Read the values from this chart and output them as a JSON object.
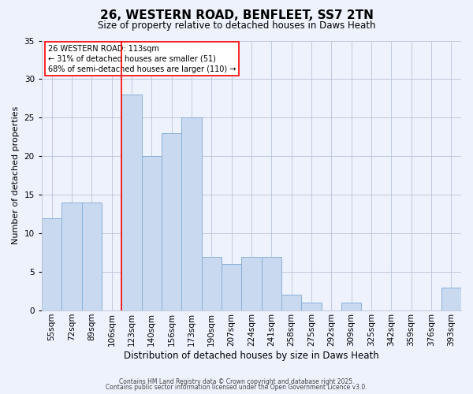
{
  "title": "26, WESTERN ROAD, BENFLEET, SS7 2TN",
  "subtitle": "Size of property relative to detached houses in Daws Heath",
  "xlabel": "Distribution of detached houses by size in Daws Heath",
  "ylabel": "Number of detached properties",
  "categories": [
    "55sqm",
    "72sqm",
    "89sqm",
    "106sqm",
    "123sqm",
    "140sqm",
    "156sqm",
    "173sqm",
    "190sqm",
    "207sqm",
    "224sqm",
    "241sqm",
    "258sqm",
    "275sqm",
    "292sqm",
    "309sqm",
    "325sqm",
    "342sqm",
    "359sqm",
    "376sqm",
    "393sqm"
  ],
  "values": [
    12,
    14,
    14,
    0,
    28,
    20,
    23,
    25,
    7,
    6,
    7,
    7,
    2,
    1,
    0,
    1,
    0,
    0,
    0,
    0,
    3
  ],
  "bar_color": "#c8d9f0",
  "bar_edge_color": "#8ab0d8",
  "red_line_index": 4,
  "annotation_title": "26 WESTERN ROAD: 113sqm",
  "annotation_line1": "← 31% of detached houses are smaller (51)",
  "annotation_line2": "68% of semi-detached houses are larger (110) →",
  "footer1": "Contains HM Land Registry data © Crown copyright and database right 2025.",
  "footer2": "Contains public sector information licensed under the Open Government Licence v3.0.",
  "background_color": "#eef2fc",
  "plot_background": "#eef2fc",
  "ylim": [
    0,
    35
  ],
  "yticks": [
    0,
    5,
    10,
    15,
    20,
    25,
    30,
    35
  ],
  "title_fontsize": 11,
  "subtitle_fontsize": 8.5,
  "ylabel_fontsize": 8,
  "xlabel_fontsize": 8.5,
  "tick_fontsize": 7.5,
  "footer_fontsize": 5.5,
  "annot_fontsize": 7.0
}
